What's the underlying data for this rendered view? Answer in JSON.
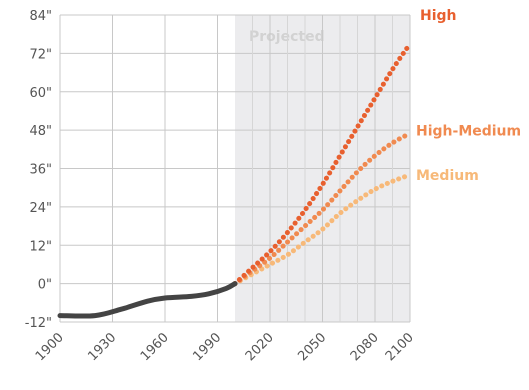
{
  "chart_data": {
    "type": "line",
    "title": "",
    "xlabel": "",
    "ylabel": "",
    "xlim": [
      1900,
      2100
    ],
    "ylim": [
      -12,
      84
    ],
    "x_ticks": [
      "1900",
      "1930",
      "1960",
      "1990",
      "2020",
      "2050",
      "2080",
      "2100"
    ],
    "y_ticks": [
      "84\"",
      "72\"",
      "60\"",
      "48\"",
      "36\"",
      "24\"",
      "12\"",
      "0\"",
      "-12\""
    ],
    "grid": true,
    "projected_region": {
      "label": "Projected",
      "from": 2000,
      "to": 2100
    },
    "series": [
      {
        "name": "",
        "color": "#444444",
        "style": "solid",
        "points": [
          [
            1900,
            -10
          ],
          [
            1920,
            -10
          ],
          [
            1935,
            -8
          ],
          [
            1950,
            -5.5
          ],
          [
            1960,
            -4.5
          ],
          [
            1975,
            -4
          ],
          [
            1985,
            -3.2
          ],
          [
            1995,
            -1.5
          ],
          [
            2000,
            0
          ]
        ]
      },
      {
        "name": "High",
        "color": "#e8602f",
        "style": "dotted",
        "points": [
          [
            2000,
            0
          ],
          [
            2010,
            5
          ],
          [
            2020,
            10
          ],
          [
            2030,
            16
          ],
          [
            2040,
            23
          ],
          [
            2050,
            31
          ],
          [
            2060,
            40
          ],
          [
            2070,
            49
          ],
          [
            2080,
            58
          ],
          [
            2090,
            67
          ],
          [
            2100,
            75
          ]
        ]
      },
      {
        "name": "High-Medium",
        "color": "#f08a50",
        "style": "dotted",
        "points": [
          [
            2000,
            0
          ],
          [
            2010,
            4
          ],
          [
            2020,
            8
          ],
          [
            2030,
            13
          ],
          [
            2040,
            18
          ],
          [
            2050,
            23
          ],
          [
            2060,
            29
          ],
          [
            2070,
            35
          ],
          [
            2080,
            40
          ],
          [
            2090,
            44
          ],
          [
            2100,
            47
          ]
        ]
      },
      {
        "name": "Medium",
        "color": "#f7b979",
        "style": "dotted",
        "points": [
          [
            2000,
            0
          ],
          [
            2010,
            3
          ],
          [
            2020,
            6
          ],
          [
            2030,
            9
          ],
          [
            2040,
            13
          ],
          [
            2050,
            17
          ],
          [
            2060,
            22
          ],
          [
            2070,
            26
          ],
          [
            2080,
            29.5
          ],
          [
            2090,
            32
          ],
          [
            2100,
            34
          ]
        ]
      }
    ]
  }
}
